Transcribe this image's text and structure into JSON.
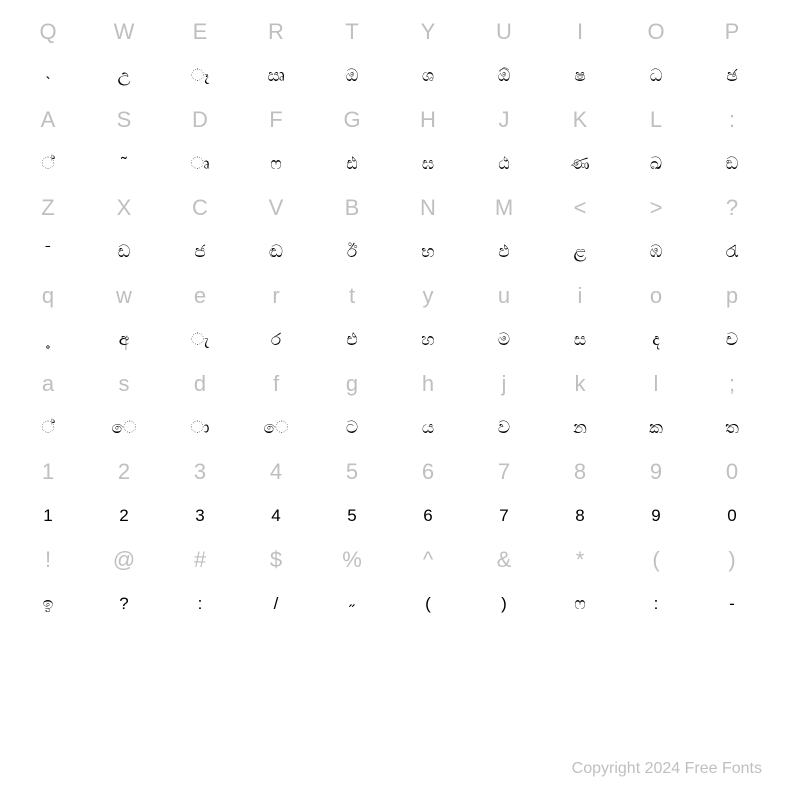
{
  "rows": [
    {
      "type": "key",
      "cells": [
        "Q",
        "W",
        "E",
        "R",
        "T",
        "Y",
        "U",
        "I",
        "O",
        "P"
      ]
    },
    {
      "type": "glyph",
      "cells": [
        "˴",
        "උ",
        "ෑ",
        "ඍ",
        "ඔ",
        "ශ",
        "ඕ",
        "ෂ",
        "ධ",
        "ඡ"
      ]
    },
    {
      "type": "key",
      "cells": [
        "A",
        "S",
        "D",
        "F",
        "G",
        "H",
        "J",
        "K",
        "L",
        ":"
      ]
    },
    {
      "type": "glyph",
      "cells": [
        "්",
        "˜",
        "ෘ",
        "ෆ",
        "ඪ",
        "ඝ",
        "ඨ",
        "ණ",
        "ඛ",
        "ඞ"
      ]
    },
    {
      "type": "key",
      "cells": [
        "Z",
        "X",
        "C",
        "V",
        "B",
        "N",
        "M",
        "<",
        ">",
        "?"
      ]
    },
    {
      "type": "glyph",
      "cells": [
        "ˉ",
        "ඩ",
        "ජ",
        "ඬ",
        "ඊ",
        "භ",
        "ඵ",
        "ළ",
        "ඹ",
        "රැ"
      ]
    },
    {
      "type": "key",
      "cells": [
        "q",
        "w",
        "e",
        "r",
        "t",
        "y",
        "u",
        "i",
        "o",
        "p"
      ]
    },
    {
      "type": "glyph",
      "cells": [
        "˳",
        "අ",
        "ැ",
        "ර",
        "එ",
        "හ",
        "ම",
        "ස",
        "ද",
        "ච"
      ]
    },
    {
      "type": "key",
      "cells": [
        "a",
        "s",
        "d",
        "f",
        "g",
        "h",
        "j",
        "k",
        "l",
        ";"
      ]
    },
    {
      "type": "glyph",
      "cells": [
        "්",
        "ෙ",
        "ා",
        "ෙ",
        "ට",
        "ය",
        "ව",
        "න",
        "ක",
        "ත"
      ]
    },
    {
      "type": "key",
      "cells": [
        "1",
        "2",
        "3",
        "4",
        "5",
        "6",
        "7",
        "8",
        "9",
        "0"
      ]
    },
    {
      "type": "glyph",
      "cells": [
        "1",
        "2",
        "3",
        "4",
        "5",
        "6",
        "7",
        "8",
        "9",
        "0"
      ]
    },
    {
      "type": "key",
      "cells": [
        "!",
        "@",
        "#",
        "$",
        "%",
        "^",
        "&",
        "*",
        "(",
        ")"
      ]
    },
    {
      "type": "glyph",
      "cells": [
        "ඉ",
        "?",
        ":",
        "/",
        "˶",
        "(",
        ")",
        "ෆ",
        ":",
        "-"
      ]
    }
  ],
  "colors": {
    "key_color": "#bfbfbf",
    "glyph_color": "#000000",
    "background": "#ffffff"
  },
  "typography": {
    "key_fontsize": 22,
    "glyph_fontsize": 17
  },
  "copyright": "Copyright 2024 Free Fonts"
}
